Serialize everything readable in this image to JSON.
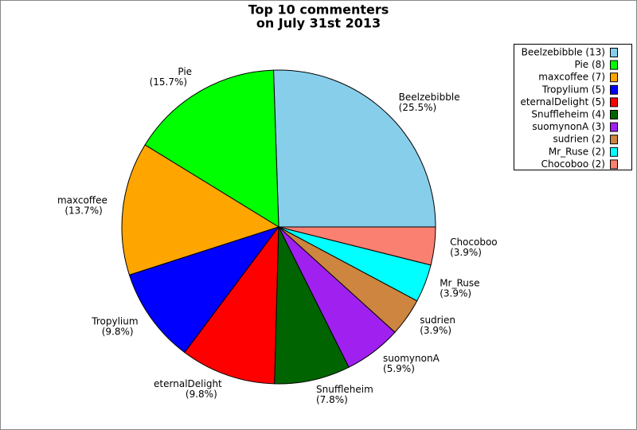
{
  "chart_data": {
    "type": "pie",
    "title": [
      "Top 10 commenters",
      "on July 31st 2013"
    ],
    "categories": [
      "Beelzebibble",
      "Pie",
      "maxcoffee",
      "Tropylium",
      "eternalDelight",
      "Snuffleheim",
      "suomynonA",
      "sudrien",
      "Mr_Ruse",
      "Chocoboo"
    ],
    "values": [
      25.5,
      15.7,
      13.7,
      9.8,
      9.8,
      7.8,
      5.9,
      3.9,
      3.9,
      3.9
    ],
    "value_labels": [
      "(25.5%)",
      "(15.7%)",
      "(13.7%)",
      "(9.8%)",
      "(9.8%)",
      "(7.8%)",
      "(5.9%)",
      "(3.9%)",
      "(3.9%)",
      "(3.9%)"
    ],
    "colors": [
      "#87ceeb",
      "#00ff00",
      "#ffa500",
      "#0000ff",
      "#ff0000",
      "#006400",
      "#a020f0",
      "#cd853f",
      "#00ffff",
      "#fa8072"
    ],
    "legend_labels": [
      "Beelzebibble (13)",
      "Pie (8)",
      "maxcoffee (7)",
      "Tropylium (5)",
      "eternalDelight (5)",
      "Snuffleheim (4)",
      "suomynonA (3)",
      "sudrien (2)",
      "Mr_Ruse (2)",
      "Chocoboo (2)"
    ],
    "legend_position": "upper right"
  }
}
